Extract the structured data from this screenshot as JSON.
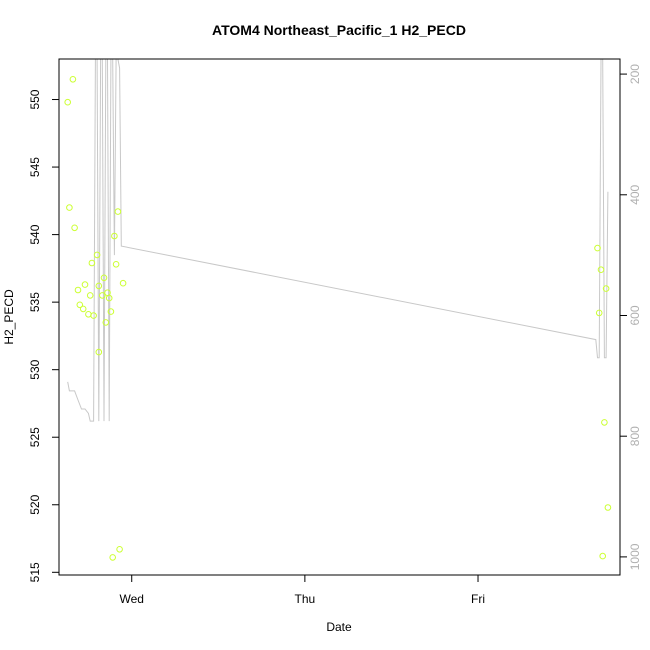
{
  "chart_data": {
    "type": "scatter",
    "title": "ATOM4 Northeast_Pacific_1 H2_PECD",
    "xlabel": "Date",
    "ylabel": "H2_PECD",
    "x_ticks": [
      "Wed",
      "Thu",
      "Fri"
    ],
    "x_tick_days": [
      0,
      1,
      2
    ],
    "xlim": [
      -0.42,
      2.82
    ],
    "ylim": [
      514.8,
      553.0
    ],
    "y_ticks": [
      515,
      520,
      525,
      530,
      535,
      540,
      545,
      550
    ],
    "y2_ticks": [
      200,
      400,
      600,
      800,
      1000
    ],
    "y2lim": [
      1030,
      175
    ],
    "point_color": "#ccff33",
    "line_color": "#c8c8c8",
    "points": [
      {
        "x": -0.37,
        "y": 549.8
      },
      {
        "x": -0.34,
        "y": 551.5
      },
      {
        "x": -0.36,
        "y": 542.0
      },
      {
        "x": -0.33,
        "y": 540.5
      },
      {
        "x": -0.31,
        "y": 535.9
      },
      {
        "x": -0.3,
        "y": 534.8
      },
      {
        "x": -0.28,
        "y": 534.5
      },
      {
        "x": -0.27,
        "y": 536.3
      },
      {
        "x": -0.25,
        "y": 534.1
      },
      {
        "x": -0.24,
        "y": 535.5
      },
      {
        "x": -0.23,
        "y": 537.9
      },
      {
        "x": -0.22,
        "y": 534.0
      },
      {
        "x": -0.2,
        "y": 538.5
      },
      {
        "x": -0.19,
        "y": 536.2
      },
      {
        "x": -0.19,
        "y": 531.3
      },
      {
        "x": -0.17,
        "y": 535.5
      },
      {
        "x": -0.16,
        "y": 536.8
      },
      {
        "x": -0.15,
        "y": 533.5
      },
      {
        "x": -0.14,
        "y": 535.7
      },
      {
        "x": -0.13,
        "y": 535.3
      },
      {
        "x": -0.12,
        "y": 534.3
      },
      {
        "x": -0.11,
        "y": 516.1
      },
      {
        "x": -0.1,
        "y": 539.9
      },
      {
        "x": -0.09,
        "y": 537.8
      },
      {
        "x": -0.08,
        "y": 541.7
      },
      {
        "x": -0.07,
        "y": 516.7
      },
      {
        "x": -0.05,
        "y": 536.4
      },
      {
        "x": 2.69,
        "y": 539.0
      },
      {
        "x": 2.7,
        "y": 534.2
      },
      {
        "x": 2.71,
        "y": 537.4
      },
      {
        "x": 2.72,
        "y": 516.2
      },
      {
        "x": 2.73,
        "y": 526.1
      },
      {
        "x": 2.74,
        "y": 536.0
      },
      {
        "x": 2.75,
        "y": 519.8
      }
    ],
    "line": [
      {
        "x": -0.37,
        "y2": 710
      },
      {
        "x": -0.36,
        "y2": 725
      },
      {
        "x": -0.33,
        "y2": 725
      },
      {
        "x": -0.31,
        "y2": 740
      },
      {
        "x": -0.29,
        "y2": 755
      },
      {
        "x": -0.27,
        "y2": 755
      },
      {
        "x": -0.25,
        "y2": 762
      },
      {
        "x": -0.24,
        "y2": 775
      },
      {
        "x": -0.22,
        "y2": 775
      },
      {
        "x": -0.21,
        "y2": 175
      },
      {
        "x": -0.2,
        "y2": 175
      },
      {
        "x": -0.19,
        "y2": 775
      },
      {
        "x": -0.18,
        "y2": 175
      },
      {
        "x": -0.17,
        "y2": 175
      },
      {
        "x": -0.16,
        "y2": 775
      },
      {
        "x": -0.15,
        "y2": 175
      },
      {
        "x": -0.14,
        "y2": 175
      },
      {
        "x": -0.13,
        "y2": 775
      },
      {
        "x": -0.12,
        "y2": 175
      },
      {
        "x": -0.11,
        "y2": 175
      },
      {
        "x": -0.1,
        "y2": 500
      },
      {
        "x": -0.09,
        "y2": 175
      },
      {
        "x": -0.08,
        "y2": 175
      },
      {
        "x": -0.07,
        "y2": 190
      },
      {
        "x": -0.06,
        "y2": 485
      },
      {
        "x": 2.68,
        "y2": 640
      },
      {
        "x": 2.69,
        "y2": 670
      },
      {
        "x": 2.7,
        "y2": 670
      },
      {
        "x": 2.71,
        "y2": 175
      },
      {
        "x": 2.72,
        "y2": 175
      },
      {
        "x": 2.73,
        "y2": 670
      },
      {
        "x": 2.74,
        "y2": 670
      },
      {
        "x": 2.75,
        "y2": 395
      }
    ]
  }
}
